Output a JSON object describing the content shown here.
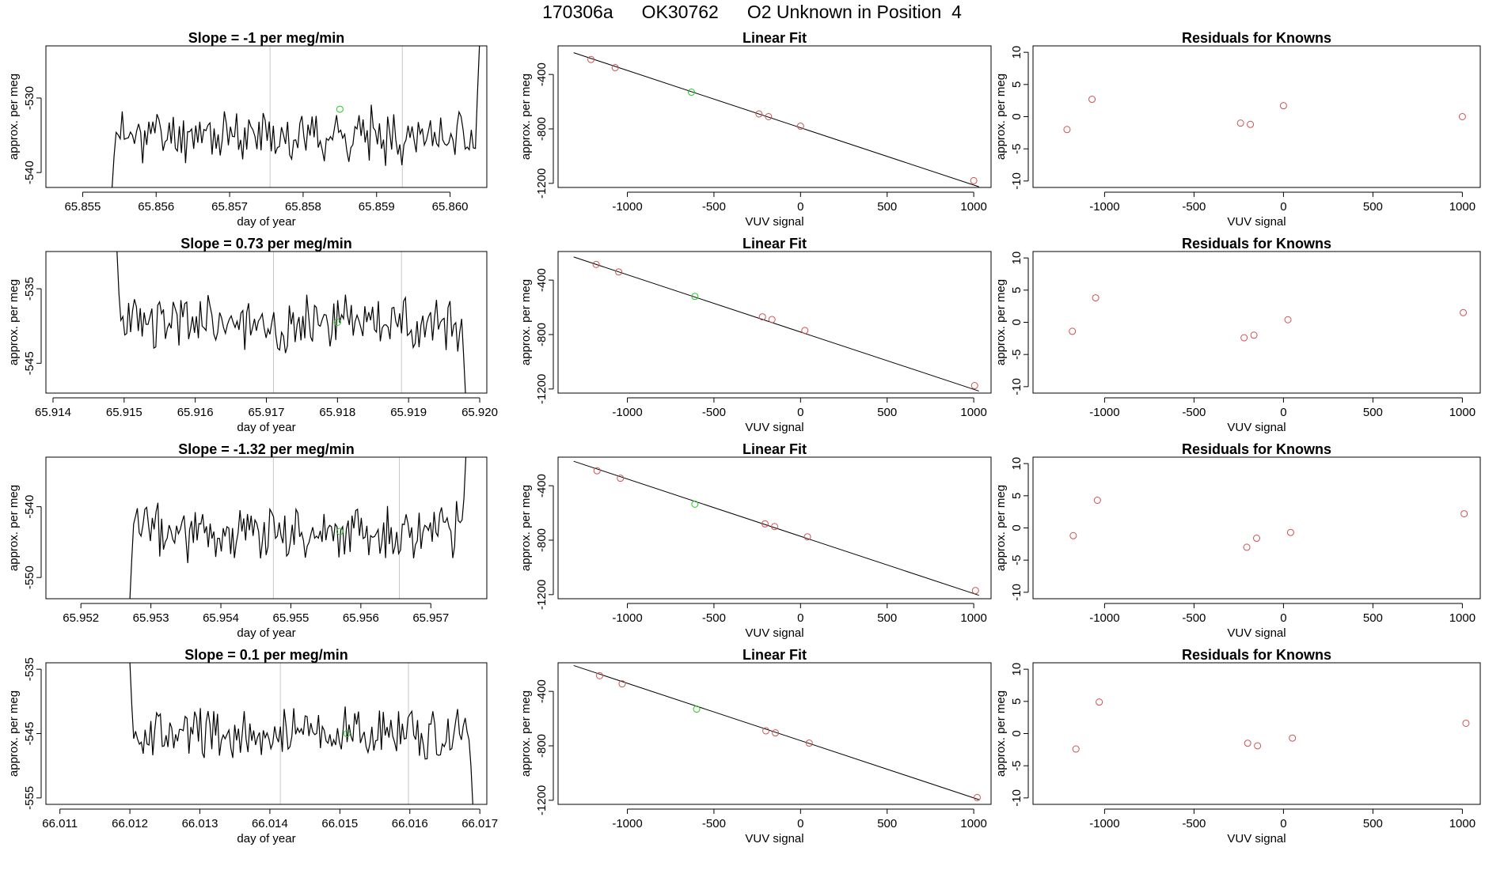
{
  "header": {
    "run_id": "170306a",
    "tank_id": "OK30762",
    "description": "O2 Unknown in Position  4"
  },
  "colors": {
    "trace": "#000000",
    "frame": "#000000",
    "known_point": "#d05050",
    "unknown_point": "#22cc22",
    "cycle_marker": "#c8c8c8"
  },
  "chart_data": [
    {
      "type": "line",
      "title": "Slope =  -1  per meg/min",
      "xlabel": "day of year",
      "ylabel": "approx. per meg",
      "xlim": [
        65.8545,
        65.8605
      ],
      "ylim": [
        -542,
        -523
      ],
      "x_ticks": [
        "65.855",
        "65.856",
        "65.857",
        "65.858",
        "65.859",
        "65.860"
      ],
      "y_ticks": [
        "-540",
        "-530"
      ],
      "x_start": 65.8554,
      "x_end": 65.8604,
      "baseline": -535,
      "amplitude": 2.6,
      "entry_y": -542,
      "exit_y": -523,
      "vlines": [
        65.85755,
        65.85935
      ],
      "unknown_point": {
        "x": 65.8585,
        "y": -531.5
      },
      "noise_seed": 11
    },
    {
      "type": "line",
      "title": "Slope =  0.73  per meg/min",
      "xlabel": "day of year",
      "ylabel": "approx. per meg",
      "xlim": [
        65.9139,
        65.9201
      ],
      "ylim": [
        -549,
        -530
      ],
      "x_ticks": [
        "65.914",
        "65.915",
        "65.916",
        "65.917",
        "65.918",
        "65.919",
        "65.920"
      ],
      "y_ticks": [
        "-545",
        "-535"
      ],
      "x_start": 65.9149,
      "x_end": 65.9198,
      "baseline": -539.5,
      "amplitude": 2.8,
      "entry_y": -530,
      "exit_y": -549,
      "vlines": [
        65.9171,
        65.9189
      ],
      "unknown_point": {
        "x": 65.918,
        "y": -539.5
      },
      "noise_seed": 23
    },
    {
      "type": "line",
      "title": "Slope =  -1.32  per meg/min",
      "xlabel": "day of year",
      "ylabel": "approx. per meg",
      "xlim": [
        65.9515,
        65.9578
      ],
      "ylim": [
        -553,
        -533
      ],
      "x_ticks": [
        "65.952",
        "65.953",
        "65.954",
        "65.955",
        "65.956",
        "65.957"
      ],
      "y_ticks": [
        "-550",
        "-540"
      ],
      "x_start": 65.9527,
      "x_end": 65.9575,
      "baseline": -543.5,
      "amplitude": 3.0,
      "entry_y": -553,
      "exit_y": -533,
      "vlines": [
        65.95475,
        65.95655
      ],
      "unknown_point": {
        "x": 65.9557,
        "y": -543.5
      },
      "noise_seed": 37
    },
    {
      "type": "line",
      "title": "Slope =  0.1  per meg/min",
      "xlabel": "day of year",
      "ylabel": "approx. per meg",
      "xlim": [
        66.0108,
        66.0171
      ],
      "ylim": [
        -556,
        -534
      ],
      "x_ticks": [
        "66.011",
        "66.012",
        "66.013",
        "66.014",
        "66.015",
        "66.016",
        "66.017"
      ],
      "y_ticks": [
        "-555",
        "-545",
        "-535"
      ],
      "x_start": 66.012,
      "x_end": 66.0169,
      "baseline": -545,
      "amplitude": 3.0,
      "entry_y": -534,
      "exit_y": -556,
      "vlines": [
        66.01415,
        66.01598
      ],
      "unknown_point": {
        "x": 66.0151,
        "y": -545
      },
      "noise_seed": 53
    },
    {
      "type": "scatter",
      "title": "Linear Fit",
      "xlabel": "VUV signal",
      "ylabel": "approx. per meg",
      "xlim": [
        -1400,
        1100
      ],
      "ylim": [
        -1230,
        -190
      ],
      "x_ticks": [
        -1000,
        -500,
        0,
        500,
        1000
      ],
      "y_ticks": [
        -1200,
        -800,
        -400
      ],
      "fit_line": {
        "x": [
          -1310,
          1030
        ],
        "y": [
          -240,
          -1225
        ]
      },
      "knowns": [
        {
          "x": -1210,
          "y": -290
        },
        {
          "x": -1070,
          "y": -350
        },
        {
          "x": -240,
          "y": -690
        },
        {
          "x": -185,
          "y": -710
        },
        {
          "x": 0,
          "y": -780
        },
        {
          "x": 1000,
          "y": -1180
        }
      ],
      "unknown": {
        "x": -630,
        "y": -530
      }
    },
    {
      "type": "scatter",
      "title": "Residuals for Knowns",
      "xlabel": "VUV signal",
      "ylabel": "approx. per meg",
      "xlim": [
        -1400,
        1100
      ],
      "ylim": [
        -11,
        11
      ],
      "x_ticks": [
        -1000,
        -500,
        0,
        500,
        1000
      ],
      "y_ticks": [
        -10,
        -5,
        0,
        5,
        10
      ],
      "points": [
        {
          "x": -1210,
          "y": -2
        },
        {
          "x": -1070,
          "y": 2.7
        },
        {
          "x": -240,
          "y": -1
        },
        {
          "x": -185,
          "y": -1.2
        },
        {
          "x": 0,
          "y": 1.7
        },
        {
          "x": 1000,
          "y": 0
        }
      ]
    },
    {
      "type": "scatter",
      "title": "Linear Fit",
      "xlabel": "VUV signal",
      "ylabel": "approx. per meg",
      "xlim": [
        -1400,
        1100
      ],
      "ylim": [
        -1230,
        -190
      ],
      "x_ticks": [
        -1000,
        -500,
        0,
        500,
        1000
      ],
      "y_ticks": [
        -1200,
        -800,
        -400
      ],
      "fit_line": {
        "x": [
          -1310,
          1030
        ],
        "y": [
          -230,
          -1215
        ]
      },
      "knowns": [
        {
          "x": -1180,
          "y": -285
        },
        {
          "x": -1050,
          "y": -340
        },
        {
          "x": -220,
          "y": -670
        },
        {
          "x": -165,
          "y": -690
        },
        {
          "x": 25,
          "y": -770
        },
        {
          "x": 1005,
          "y": -1175
        }
      ],
      "unknown": {
        "x": -610,
        "y": -520
      }
    },
    {
      "type": "scatter",
      "title": "Residuals for Knowns",
      "xlabel": "VUV signal",
      "ylabel": "approx. per meg",
      "xlim": [
        -1400,
        1100
      ],
      "ylim": [
        -11,
        11
      ],
      "x_ticks": [
        -1000,
        -500,
        0,
        500,
        1000
      ],
      "y_ticks": [
        -10,
        -5,
        0,
        5,
        10
      ],
      "points": [
        {
          "x": -1180,
          "y": -1.4
        },
        {
          "x": -1050,
          "y": 3.8
        },
        {
          "x": -220,
          "y": -2.4
        },
        {
          "x": -165,
          "y": -2
        },
        {
          "x": 25,
          "y": 0.4
        },
        {
          "x": 1005,
          "y": 1.5
        }
      ]
    },
    {
      "type": "scatter",
      "title": "Linear Fit",
      "xlabel": "VUV signal",
      "ylabel": "approx. per meg",
      "xlim": [
        -1400,
        1100
      ],
      "ylim": [
        -1230,
        -190
      ],
      "x_ticks": [
        -1000,
        -500,
        0,
        500,
        1000
      ],
      "y_ticks": [
        -1200,
        -800,
        -400
      ],
      "fit_line": {
        "x": [
          -1310,
          1030
        ],
        "y": [
          -220,
          -1205
        ]
      },
      "knowns": [
        {
          "x": -1175,
          "y": -290
        },
        {
          "x": -1040,
          "y": -345
        },
        {
          "x": -205,
          "y": -680
        },
        {
          "x": -150,
          "y": -700
        },
        {
          "x": 40,
          "y": -775
        },
        {
          "x": 1010,
          "y": -1170
        }
      ],
      "unknown": {
        "x": -610,
        "y": -535
      }
    },
    {
      "type": "scatter",
      "title": "Residuals for Knowns",
      "xlabel": "VUV signal",
      "ylabel": "approx. per meg",
      "xlim": [
        -1400,
        1100
      ],
      "ylim": [
        -11,
        11
      ],
      "x_ticks": [
        -1000,
        -500,
        0,
        500,
        1000
      ],
      "y_ticks": [
        -10,
        -5,
        0,
        5,
        10
      ],
      "points": [
        {
          "x": -1175,
          "y": -1.2
        },
        {
          "x": -1040,
          "y": 4.3
        },
        {
          "x": -205,
          "y": -3
        },
        {
          "x": -150,
          "y": -1.6
        },
        {
          "x": 40,
          "y": -0.7
        },
        {
          "x": 1010,
          "y": 2.2
        }
      ]
    },
    {
      "type": "scatter",
      "title": "Linear Fit",
      "xlabel": "VUV signal",
      "ylabel": "approx. per meg",
      "xlim": [
        -1400,
        1100
      ],
      "ylim": [
        -1230,
        -190
      ],
      "x_ticks": [
        -1000,
        -500,
        0,
        500,
        1000
      ],
      "y_ticks": [
        -1200,
        -800,
        -400
      ],
      "fit_line": {
        "x": [
          -1310,
          1030
        ],
        "y": [
          -210,
          -1195
        ]
      },
      "knowns": [
        {
          "x": -1160,
          "y": -285
        },
        {
          "x": -1030,
          "y": -345
        },
        {
          "x": -200,
          "y": -690
        },
        {
          "x": -145,
          "y": -705
        },
        {
          "x": 50,
          "y": -780
        },
        {
          "x": 1020,
          "y": -1180
        }
      ],
      "unknown": {
        "x": -600,
        "y": -530
      }
    },
    {
      "type": "scatter",
      "title": "Residuals for Knowns",
      "xlabel": "VUV signal",
      "ylabel": "approx. per meg",
      "xlim": [
        -1400,
        1100
      ],
      "ylim": [
        -11,
        11
      ],
      "x_ticks": [
        -1000,
        -500,
        0,
        500,
        1000
      ],
      "y_ticks": [
        -10,
        -5,
        0,
        5,
        10
      ],
      "points": [
        {
          "x": -1160,
          "y": -2.4
        },
        {
          "x": -1030,
          "y": 4.9
        },
        {
          "x": -200,
          "y": -1.5
        },
        {
          "x": -145,
          "y": -1.9
        },
        {
          "x": 50,
          "y": -0.7
        },
        {
          "x": 1020,
          "y": 1.6
        }
      ]
    }
  ]
}
